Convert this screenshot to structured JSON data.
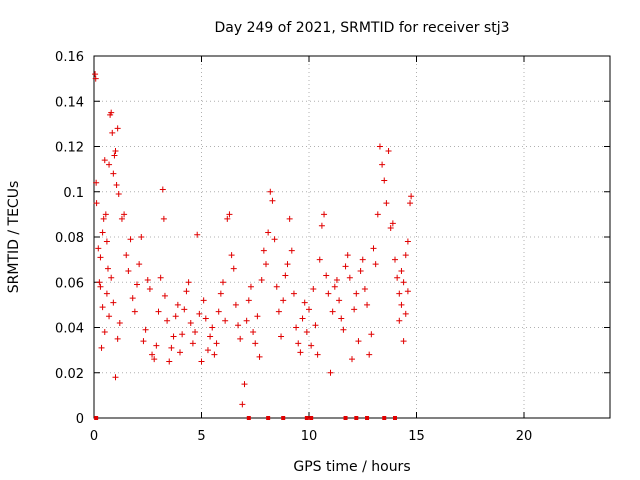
{
  "chart_data": {
    "type": "scatter",
    "title": "Day 249 of 2021, SRMTID for receiver stj3",
    "xlabel": "GPS time / hours",
    "ylabel": "SRMTID / TECUs",
    "xlim": [
      0,
      24
    ],
    "ylim": [
      0,
      0.16
    ],
    "x_ticks": [
      0,
      5,
      10,
      15,
      20
    ],
    "y_ticks": [
      0,
      0.02,
      0.04,
      0.06,
      0.08,
      0.1,
      0.12,
      0.14,
      0.16
    ],
    "x_tick_labels": [
      "0",
      "5",
      "10",
      "15",
      "20"
    ],
    "y_tick_labels": [
      "0",
      "0.02",
      "0.04",
      "0.06",
      "0.08",
      "0.1",
      "0.12",
      "0.14",
      "0.16"
    ],
    "grid": true,
    "marker": "+",
    "color": "#e00000",
    "series": [
      {
        "points": [
          [
            0.05,
            0.152
          ],
          [
            0.08,
            0.15
          ],
          [
            0.1,
            0.104
          ],
          [
            0.12,
            0.095
          ],
          [
            0.2,
            0.075
          ],
          [
            0.25,
            0.06
          ],
          [
            0.3,
            0.071
          ],
          [
            0.35,
            0.031
          ],
          [
            0.4,
            0.082
          ],
          [
            0.45,
            0.088
          ],
          [
            0.5,
            0.114
          ],
          [
            0.55,
            0.09
          ],
          [
            0.6,
            0.078
          ],
          [
            0.65,
            0.066
          ],
          [
            0.7,
            0.112
          ],
          [
            0.75,
            0.134
          ],
          [
            0.8,
            0.135
          ],
          [
            0.85,
            0.126
          ],
          [
            0.9,
            0.108
          ],
          [
            0.95,
            0.116
          ],
          [
            1.0,
            0.118
          ],
          [
            1.05,
            0.103
          ],
          [
            1.1,
            0.128
          ],
          [
            1.15,
            0.099
          ],
          [
            0.3,
            0.058
          ],
          [
            0.4,
            0.049
          ],
          [
            0.5,
            0.038
          ],
          [
            0.6,
            0.055
          ],
          [
            0.7,
            0.045
          ],
          [
            0.8,
            0.062
          ],
          [
            0.9,
            0.051
          ],
          [
            1.0,
            0.018
          ],
          [
            1.1,
            0.035
          ],
          [
            1.2,
            0.042
          ],
          [
            1.3,
            0.088
          ],
          [
            1.4,
            0.09
          ],
          [
            1.5,
            0.072
          ],
          [
            1.6,
            0.065
          ],
          [
            1.7,
            0.079
          ],
          [
            1.8,
            0.053
          ],
          [
            1.9,
            0.047
          ],
          [
            2.0,
            0.059
          ],
          [
            2.1,
            0.068
          ],
          [
            2.2,
            0.08
          ],
          [
            2.3,
            0.034
          ],
          [
            2.4,
            0.039
          ],
          [
            2.5,
            0.061
          ],
          [
            2.6,
            0.057
          ],
          [
            2.7,
            0.028
          ],
          [
            2.8,
            0.026
          ],
          [
            2.9,
            0.032
          ],
          [
            3.0,
            0.047
          ],
          [
            3.1,
            0.062
          ],
          [
            3.2,
            0.101
          ],
          [
            3.25,
            0.088
          ],
          [
            3.3,
            0.054
          ],
          [
            3.4,
            0.043
          ],
          [
            3.5,
            0.025
          ],
          [
            3.6,
            0.031
          ],
          [
            3.7,
            0.036
          ],
          [
            3.8,
            0.045
          ],
          [
            3.9,
            0.05
          ],
          [
            4.0,
            0.029
          ],
          [
            4.1,
            0.037
          ],
          [
            4.2,
            0.048
          ],
          [
            4.3,
            0.056
          ],
          [
            4.4,
            0.06
          ],
          [
            4.5,
            0.042
          ],
          [
            4.6,
            0.033
          ],
          [
            4.7,
            0.038
          ],
          [
            4.8,
            0.081
          ],
          [
            4.9,
            0.046
          ],
          [
            5.0,
            0.025
          ],
          [
            5.1,
            0.052
          ],
          [
            5.2,
            0.044
          ],
          [
            5.3,
            0.03
          ],
          [
            5.4,
            0.036
          ],
          [
            5.5,
            0.04
          ],
          [
            5.6,
            0.028
          ],
          [
            5.7,
            0.033
          ],
          [
            5.8,
            0.047
          ],
          [
            5.9,
            0.055
          ],
          [
            6.0,
            0.06
          ],
          [
            6.1,
            0.043
          ],
          [
            6.2,
            0.088
          ],
          [
            6.3,
            0.09
          ],
          [
            6.4,
            0.072
          ],
          [
            6.5,
            0.066
          ],
          [
            6.6,
            0.05
          ],
          [
            6.7,
            0.041
          ],
          [
            6.8,
            0.035
          ],
          [
            6.9,
            0.006
          ],
          [
            7.0,
            0.015
          ],
          [
            7.1,
            0.043
          ],
          [
            7.2,
            0.052
          ],
          [
            7.3,
            0.058
          ],
          [
            7.4,
            0.038
          ],
          [
            7.5,
            0.033
          ],
          [
            7.6,
            0.045
          ],
          [
            7.7,
            0.027
          ],
          [
            7.8,
            0.061
          ],
          [
            7.9,
            0.074
          ],
          [
            8.0,
            0.068
          ],
          [
            8.1,
            0.082
          ],
          [
            8.2,
            0.1
          ],
          [
            8.3,
            0.096
          ],
          [
            8.4,
            0.079
          ],
          [
            8.5,
            0.058
          ],
          [
            8.6,
            0.047
          ],
          [
            8.7,
            0.036
          ],
          [
            8.8,
            0.052
          ],
          [
            8.9,
            0.063
          ],
          [
            9.0,
            0.068
          ],
          [
            9.1,
            0.088
          ],
          [
            9.2,
            0.074
          ],
          [
            9.3,
            0.055
          ],
          [
            9.4,
            0.04
          ],
          [
            9.5,
            0.033
          ],
          [
            9.6,
            0.029
          ],
          [
            9.7,
            0.044
          ],
          [
            9.8,
            0.051
          ],
          [
            9.9,
            0.038
          ],
          [
            10.0,
            0.048
          ],
          [
            10.1,
            0.032
          ],
          [
            10.2,
            0.057
          ],
          [
            10.3,
            0.041
          ],
          [
            10.4,
            0.028
          ],
          [
            10.5,
            0.07
          ],
          [
            10.6,
            0.085
          ],
          [
            10.7,
            0.09
          ],
          [
            10.8,
            0.063
          ],
          [
            10.9,
            0.055
          ],
          [
            11.0,
            0.02
          ],
          [
            11.1,
            0.047
          ],
          [
            11.2,
            0.058
          ],
          [
            11.3,
            0.061
          ],
          [
            11.4,
            0.052
          ],
          [
            11.5,
            0.044
          ],
          [
            11.6,
            0.039
          ],
          [
            11.7,
            0.067
          ],
          [
            11.8,
            0.072
          ],
          [
            11.9,
            0.062
          ],
          [
            12.0,
            0.026
          ],
          [
            12.1,
            0.048
          ],
          [
            12.2,
            0.055
          ],
          [
            12.3,
            0.034
          ],
          [
            12.4,
            0.065
          ],
          [
            12.5,
            0.07
          ],
          [
            12.6,
            0.057
          ],
          [
            12.7,
            0.05
          ],
          [
            12.8,
            0.028
          ],
          [
            12.9,
            0.037
          ],
          [
            13.0,
            0.075
          ],
          [
            13.1,
            0.068
          ],
          [
            13.2,
            0.09
          ],
          [
            13.3,
            0.12
          ],
          [
            13.4,
            0.112
          ],
          [
            13.5,
            0.105
          ],
          [
            13.6,
            0.095
          ],
          [
            13.7,
            0.118
          ],
          [
            13.8,
            0.084
          ],
          [
            13.9,
            0.086
          ],
          [
            14.0,
            0.07
          ],
          [
            14.1,
            0.062
          ],
          [
            14.2,
            0.055
          ],
          [
            14.3,
            0.05
          ],
          [
            14.4,
            0.034
          ],
          [
            14.5,
            0.046
          ],
          [
            14.6,
            0.078
          ],
          [
            14.7,
            0.095
          ],
          [
            14.75,
            0.098
          ],
          [
            14.5,
            0.072
          ],
          [
            14.3,
            0.065
          ],
          [
            14.2,
            0.043
          ],
          [
            14.6,
            0.056
          ],
          [
            14.4,
            0.06
          ]
        ]
      }
    ],
    "zero_markers_x": [
      0.1,
      7.2,
      8.1,
      8.8,
      9.9,
      10.1,
      11.7,
      12.2,
      12.7,
      13.5,
      14.0
    ]
  }
}
